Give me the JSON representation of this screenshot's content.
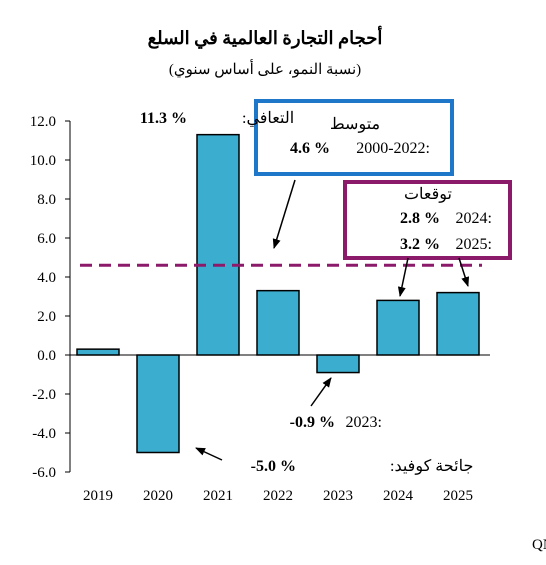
{
  "title": "أحجام التجارة العالمية في السلع",
  "subtitle": "(نسبة النمو، على أساس سنوي)",
  "source": "المصادر: منظمة التجارة العالمية، صندوق النقد الدولي، قسم الاقتصاد في QNB",
  "colors": {
    "bar": "#3BAECF",
    "bar_stroke": "#000000",
    "avg_line": "#8B1A6B",
    "blue_box": "#1E77C9",
    "purple_box": "#8B1A6B"
  },
  "annotations": {
    "recovery_label": "التعافي:",
    "recovery_value": "11.3 %",
    "avg_title": "متوسط",
    "avg_period": "2000-2022:",
    "avg_value": "4.6 %",
    "fc_title": "توقعات",
    "fc_2024_year": "2024:",
    "fc_2024_value": "2.8 %",
    "fc_2025_year": "2025:",
    "fc_2025_value": "3.2 %",
    "y2023_year": "2023:",
    "y2023_value": "-0.9 %",
    "covid_label": "جائحة كوفيد:",
    "covid_value": "-5.0 %"
  },
  "chart_data": {
    "type": "bar",
    "title": "أحجام التجارة العالمية في السلع",
    "subtitle": "(نسبة النمو، على أساس سنوي)",
    "categories": [
      "2019",
      "2020",
      "2021",
      "2022",
      "2023",
      "2024",
      "2025"
    ],
    "values": [
      0.3,
      -5.0,
      11.3,
      3.3,
      -0.9,
      2.8,
      3.2
    ],
    "reference_line": {
      "value": 4.6,
      "style": "dashed"
    },
    "ylim": [
      -6,
      12
    ],
    "yticks": [
      "-6.0",
      "-4.0",
      "-2.0",
      "0.0",
      "2.0",
      "4.0",
      "6.0",
      "8.0",
      "10.0",
      "12.0"
    ],
    "grid": false
  }
}
